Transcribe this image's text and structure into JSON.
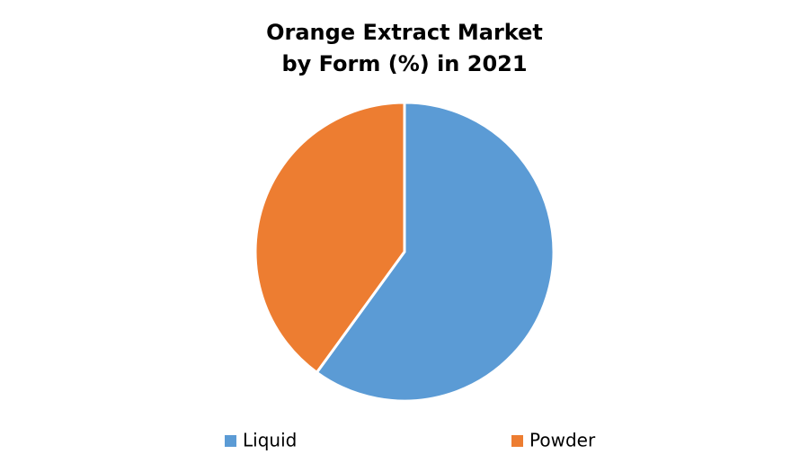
{
  "chart_data": {
    "type": "pie",
    "title": [
      "Orange Extract Market",
      "by Form (%) in 2021"
    ],
    "categories": [
      "Liquid",
      "Powder"
    ],
    "values": [
      60,
      40
    ],
    "colors": [
      "#5b9bd5",
      "#ed7d31"
    ],
    "legend": "bottom"
  }
}
